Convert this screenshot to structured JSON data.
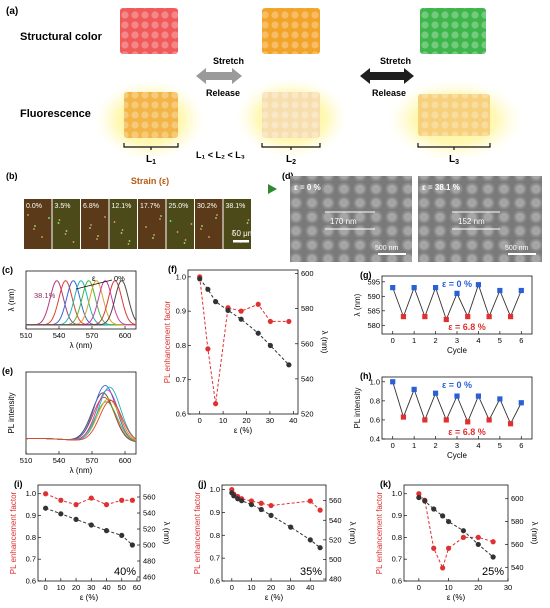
{
  "panel_a": {
    "tag": "(a)",
    "row1_label": "Structural color",
    "row2_label": "Fluorescence",
    "stretch": "Stretch",
    "release": "Release",
    "blocks": {
      "l1": "L",
      "l2": "L",
      "l3": "L"
    },
    "sub": {
      "l1": "1",
      "l2": "2",
      "l3": "3"
    },
    "relation": "L₁ < L₂ < L₃",
    "colors": {
      "red": "#f05a5a",
      "orange": "#f2a32a",
      "green": "#3fb64b",
      "yellow_glow": "#fff27a"
    }
  },
  "panel_b": {
    "tag": "(b)",
    "strain_title": "Strain (ε)",
    "strains": [
      "0.0%",
      "3.5%",
      "6.8%",
      "12.1%",
      "17.7%",
      "25.0%",
      "30.2%",
      "38.1%"
    ],
    "scalebar": "50 μm"
  },
  "panel_d": {
    "tag": "(d)",
    "left_label": "ε = 0 %",
    "left_spacing": "170 nm",
    "left_scale": "500 nm",
    "right_label": "ε = 38.1 %",
    "right_spacing": "152 nm",
    "right_scale": "500 nm"
  },
  "chart_data": [
    {
      "id": "c",
      "tag": "(c)",
      "type": "line",
      "xlabel": "λ (nm)",
      "ylabel": "λ (nm)",
      "xlim": [
        510,
        610
      ],
      "xticks": [
        510,
        540,
        570,
        600
      ],
      "annotations": [
        "38.1%",
        "ε",
        "0%"
      ],
      "peaks_nm": [
        538,
        546,
        553,
        560,
        567,
        574,
        582,
        591,
        597
      ],
      "series_colors": [
        "#b03a7a",
        "#e0402a",
        "#3c62d8",
        "#18b8b8",
        "#44b838",
        "#e2a020",
        "#c93aa8",
        "#d83a3a",
        "#4a4a4a"
      ]
    },
    {
      "id": "e",
      "tag": "(e)",
      "type": "line",
      "xlabel": "λ (nm)",
      "ylabel": "PL intensity",
      "xlim": [
        510,
        610
      ],
      "xticks": [
        510,
        540,
        570,
        600
      ],
      "peaks_nm": [
        580,
        581,
        582,
        583,
        584,
        585,
        586,
        587
      ],
      "peak_heights": [
        0.82,
        0.76,
        0.92,
        0.7,
        0.86,
        0.74,
        0.9,
        0.72
      ],
      "series_colors": [
        "#4a4a4a",
        "#d83a3a",
        "#3c62d8",
        "#44b838",
        "#c93aa8",
        "#e2a020",
        "#18b8b8",
        "#e0402a"
      ]
    },
    {
      "id": "f",
      "tag": "(f)",
      "type": "line",
      "xlabel": "ε (%)",
      "ylabel": "PL enhancement factor",
      "y2label": "λ (nm)",
      "xlim": [
        -5,
        42
      ],
      "xticks": [
        0,
        10,
        20,
        30,
        40
      ],
      "ylim": [
        0.6,
        1.02
      ],
      "yticks": [
        0.6,
        0.7,
        0.8,
        0.9,
        1.0
      ],
      "y2lim": [
        520,
        602
      ],
      "y2ticks": [
        520,
        540,
        560,
        580,
        600
      ],
      "series": [
        {
          "axis": "left",
          "color": "#e03030",
          "x": [
            0,
            3.5,
            6.8,
            12.1,
            17.7,
            25.0,
            30.2,
            38.1
          ],
          "values": [
            1.0,
            0.79,
            0.63,
            0.91,
            0.9,
            0.92,
            0.87,
            0.87
          ]
        },
        {
          "axis": "right",
          "color": "#333333",
          "x": [
            0,
            3.5,
            6.8,
            12.1,
            17.7,
            25.0,
            30.2,
            38.1
          ],
          "values": [
            597,
            591,
            584,
            579,
            574,
            566,
            559,
            548
          ]
        }
      ]
    },
    {
      "id": "g",
      "tag": "(g)",
      "type": "line",
      "xlabel": "Cycle",
      "ylabel": "λ (nm)",
      "xlim": [
        -0.5,
        6.5
      ],
      "xticks": [
        0,
        1,
        2,
        3,
        4,
        5,
        6
      ],
      "ylim": [
        577,
        597
      ],
      "yticks": [
        580,
        585,
        590,
        595
      ],
      "label_top": "ε = 0 %",
      "label_bottom": "ε = 6.8 %",
      "x": [
        0,
        0.5,
        1,
        1.5,
        2,
        2.5,
        3,
        3.5,
        4,
        4.5,
        5,
        5.5,
        6
      ],
      "values": [
        593,
        583,
        593,
        583,
        593,
        582,
        591,
        583,
        594,
        583,
        592,
        583,
        592
      ],
      "colors": {
        "relaxed": "#2a5fd6",
        "stretched": "#e03030",
        "line": "#333333"
      }
    },
    {
      "id": "h",
      "tag": "(h)",
      "type": "line",
      "xlabel": "Cycle",
      "ylabel": "PL intensity",
      "xlim": [
        -0.5,
        6.5
      ],
      "xticks": [
        0,
        1,
        2,
        3,
        4,
        5,
        6
      ],
      "ylim": [
        0.4,
        1.05
      ],
      "yticks": [
        0.4,
        0.6,
        0.8,
        1.0
      ],
      "label_top": "ε = 0 %",
      "label_bottom": "ε = 6.8 %",
      "x": [
        0,
        0.5,
        1,
        1.5,
        2,
        2.5,
        3,
        3.5,
        4,
        4.5,
        5,
        5.5,
        6
      ],
      "values": [
        1.0,
        0.63,
        0.92,
        0.6,
        0.88,
        0.6,
        0.85,
        0.58,
        0.85,
        0.6,
        0.82,
        0.56,
        0.78
      ],
      "colors": {
        "relaxed": "#2a5fd6",
        "stretched": "#e03030",
        "line": "#333333"
      }
    },
    {
      "id": "i",
      "tag": "(i)",
      "type": "line",
      "xlabel": "ε (%)",
      "ylabel": "PL enhancement factor",
      "y2label": "λ (nm)",
      "xlim": [
        -5,
        62
      ],
      "xticks": [
        0,
        10,
        20,
        30,
        40,
        50,
        60
      ],
      "ylim": [
        0.6,
        1.04
      ],
      "yticks": [
        0.6,
        0.7,
        0.8,
        0.9,
        1.0
      ],
      "y2lim": [
        455,
        575
      ],
      "y2ticks": [
        460,
        480,
        500,
        520,
        540,
        560
      ],
      "corner_label": "40%",
      "series": [
        {
          "axis": "left",
          "color": "#e03030",
          "x": [
            0,
            10,
            20,
            30,
            40,
            50,
            57
          ],
          "values": [
            1.0,
            0.97,
            0.95,
            0.98,
            0.95,
            0.97,
            0.97
          ]
        },
        {
          "axis": "right",
          "color": "#333333",
          "x": [
            0,
            10,
            20,
            30,
            40,
            50,
            57
          ],
          "values": [
            546,
            539,
            532,
            525,
            518,
            512,
            500
          ]
        }
      ]
    },
    {
      "id": "j",
      "tag": "(j)",
      "type": "line",
      "xlabel": "ε (%)",
      "ylabel": "PL enhancement factor",
      "y2label": "λ (nm)",
      "xlim": [
        -5,
        48
      ],
      "xticks": [
        0,
        10,
        20,
        30,
        40
      ],
      "ylim": [
        0.6,
        1.02
      ],
      "yticks": [
        0.6,
        0.7,
        0.8,
        0.9,
        1.0
      ],
      "y2lim": [
        478,
        576
      ],
      "y2ticks": [
        480,
        500,
        520,
        540,
        560
      ],
      "corner_label": "35%",
      "series": [
        {
          "axis": "left",
          "color": "#e03030",
          "x": [
            0,
            1,
            3,
            5,
            10,
            15,
            20,
            40,
            45
          ],
          "values": [
            1.0,
            0.98,
            0.97,
            0.96,
            0.95,
            0.94,
            0.93,
            0.95,
            0.91
          ]
        },
        {
          "axis": "right",
          "color": "#333333",
          "x": [
            0,
            1,
            3,
            5,
            10,
            15,
            20,
            30,
            40,
            45
          ],
          "values": [
            568,
            565,
            562,
            560,
            556,
            551,
            545,
            533,
            520,
            512
          ]
        }
      ]
    },
    {
      "id": "k",
      "tag": "(k)",
      "type": "line",
      "xlabel": "ε (%)",
      "ylabel": "PL enhancement factor",
      "y2label": "λ (nm)",
      "xlim": [
        -5,
        30
      ],
      "xticks": [
        0,
        10,
        20,
        30
      ],
      "ylim": [
        0.6,
        1.04
      ],
      "yticks": [
        0.6,
        0.7,
        0.8,
        0.9,
        1.0
      ],
      "y2lim": [
        528,
        612
      ],
      "y2ticks": [
        540,
        560,
        580,
        600
      ],
      "corner_label": "25%",
      "series": [
        {
          "axis": "left",
          "color": "#e03030",
          "x": [
            0,
            2,
            5,
            8,
            10,
            15,
            20,
            25
          ],
          "values": [
            1.0,
            0.97,
            0.75,
            0.66,
            0.75,
            0.8,
            0.8,
            0.78
          ]
        },
        {
          "axis": "right",
          "color": "#333333",
          "x": [
            0,
            2,
            5,
            8,
            10,
            15,
            20,
            25
          ],
          "values": [
            601,
            598,
            591,
            585,
            580,
            572,
            560,
            549
          ]
        }
      ]
    }
  ]
}
